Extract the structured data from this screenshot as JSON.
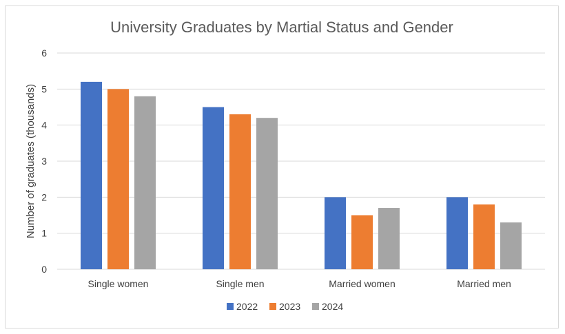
{
  "chart_data": {
    "type": "bar",
    "title": "University Graduates by Martial Status and Gender",
    "xlabel": "",
    "ylabel": "Number of graduates (thousands)",
    "categories": [
      "Single women",
      "Single men",
      "Married women",
      "Married men"
    ],
    "series": [
      {
        "name": "2022",
        "values": [
          5.2,
          4.5,
          2.0,
          2.0
        ],
        "color": "#4472c4"
      },
      {
        "name": "2023",
        "values": [
          5.0,
          4.3,
          1.5,
          1.8
        ],
        "color": "#ed7d31"
      },
      {
        "name": "2024",
        "values": [
          4.8,
          4.2,
          1.7,
          1.3
        ],
        "color": "#a5a5a5"
      }
    ],
    "ylim": [
      0,
      6
    ],
    "yticks": [
      "0",
      "1",
      "2",
      "3",
      "4",
      "5",
      "6"
    ],
    "grid": true,
    "legend_position": "bottom"
  }
}
